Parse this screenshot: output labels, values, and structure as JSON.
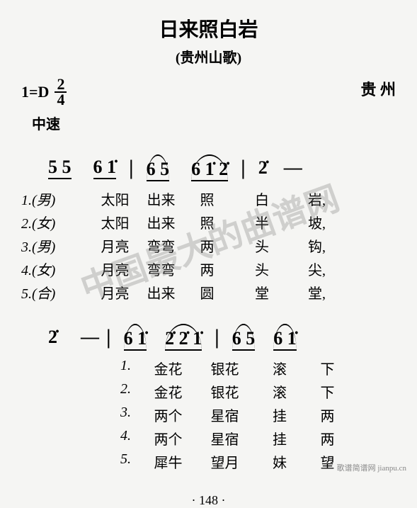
{
  "title": "日来照白岩",
  "subtitle": "(贵州山歌)",
  "key": "1=D",
  "time_top": "2",
  "time_bot": "4",
  "region": "贵 州",
  "tempo": "中速",
  "notation_line1": {
    "g1": "5 5",
    "g2": "6 1̇",
    "g3": "6 5",
    "g4": "6 1̇ 2̇",
    "g5": "2̇",
    "dash": "—"
  },
  "lyrics1": [
    {
      "label": "1.(男)",
      "s1": "太阳",
      "s2": "出来",
      "s3": "照",
      "s4": "白",
      "s5": "岩,"
    },
    {
      "label": "2.(女)",
      "s1": "太阳",
      "s2": "出来",
      "s3": "照",
      "s4": "半",
      "s5": "坡,"
    },
    {
      "label": "3.(男)",
      "s1": "月亮",
      "s2": "弯弯",
      "s3": "两",
      "s4": "头",
      "s5": "钩,"
    },
    {
      "label": "4.(女)",
      "s1": "月亮",
      "s2": "弯弯",
      "s3": "两",
      "s4": "头",
      "s5": "尖,"
    },
    {
      "label": "5.(合)",
      "s1": "月亮",
      "s2": "出来",
      "s3": "圆",
      "s4": "堂",
      "s5": "堂,"
    }
  ],
  "notation_line2": {
    "g1": "2̇",
    "dash": "—",
    "g2": "6 1̇",
    "g3": "2̇ 2̇ 1̇",
    "g4": "6 5",
    "g5": "6 1̇"
  },
  "lyrics2": [
    {
      "label": "1.",
      "s1": "金花",
      "s2": "银花",
      "s3": "滚",
      "s4": "下"
    },
    {
      "label": "2.",
      "s1": "金花",
      "s2": "银花",
      "s3": "滚",
      "s4": "下"
    },
    {
      "label": "3.",
      "s1": "两个",
      "s2": "星宿",
      "s3": "挂",
      "s4": "两"
    },
    {
      "label": "4.",
      "s1": "两个",
      "s2": "星宿",
      "s3": "挂",
      "s4": "两"
    },
    {
      "label": "5.",
      "s1": "犀牛",
      "s2": "望月",
      "s3": "妹",
      "s4": "望"
    }
  ],
  "page_num": "· 148 ·",
  "watermark": "中国最大的曲谱网",
  "site": "歌谱简谱网 jianpu.cn"
}
